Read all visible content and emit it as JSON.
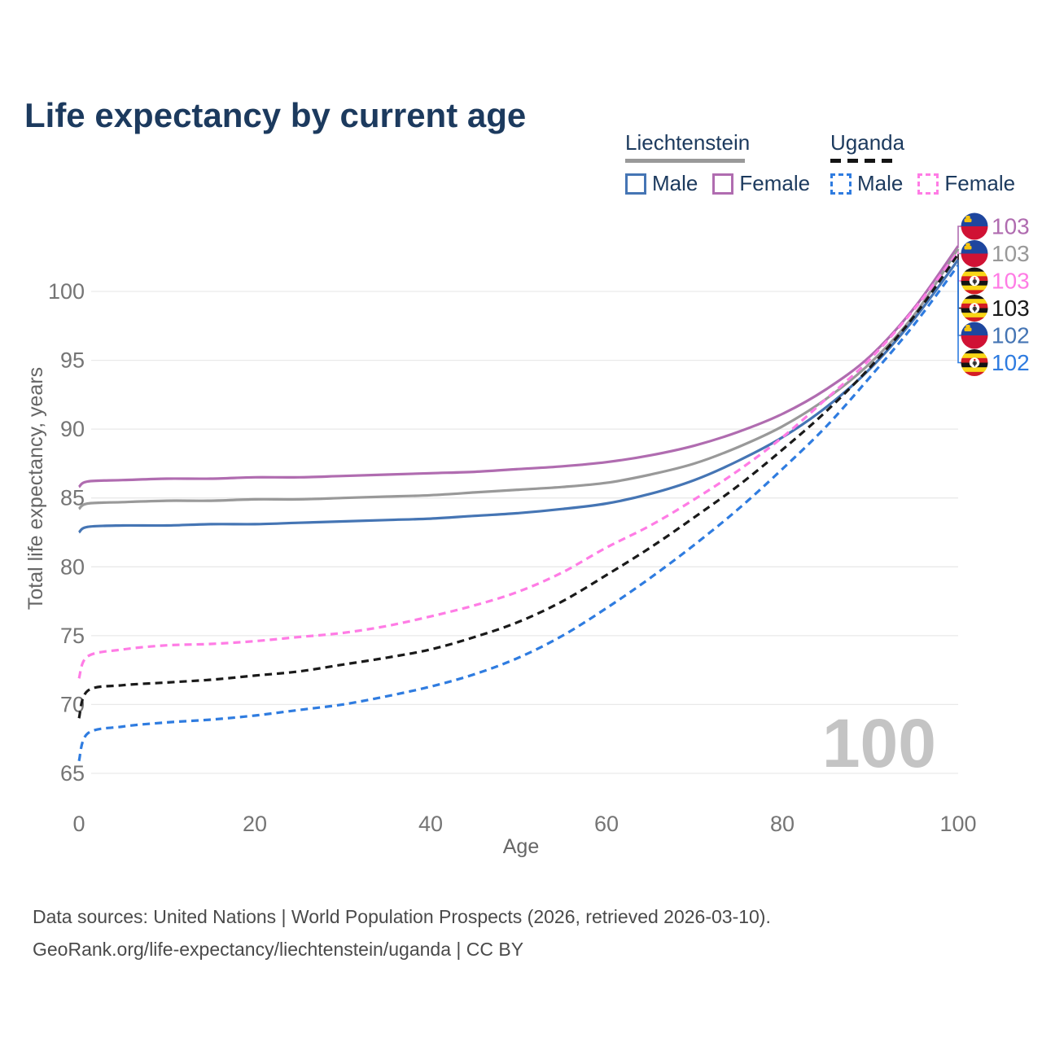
{
  "title": "Life expectancy by current age",
  "legend": {
    "groups": [
      {
        "label": "Liechtenstein",
        "line_style": "solid",
        "underline_color": "#999999",
        "items": [
          {
            "label": "Male",
            "color": "#4575b4",
            "dashed": false
          },
          {
            "label": "Female",
            "color": "#b06cb0",
            "dashed": false
          }
        ]
      },
      {
        "label": "Uganda",
        "line_style": "dashed",
        "underline_color": "#141414",
        "items": [
          {
            "label": "Male",
            "color": "#2f7ce0",
            "dashed": true
          },
          {
            "label": "Female",
            "color": "#ff7ce5",
            "dashed": true
          }
        ]
      }
    ]
  },
  "watermark": {
    "text": "100",
    "color": "#c4c4c4"
  },
  "footer": {
    "line1": "Data sources: United Nations | World Population Prospects (2026, retrieved 2026-03-10).",
    "line2": "GeoRank.org/life-expectancy/liechtenstein/uganda | CC BY"
  },
  "chart_data": {
    "type": "line",
    "title": "Life expectancy by current age",
    "xlabel": "Age",
    "ylabel": "Total life expectancy, years",
    "xlim": [
      0,
      100
    ],
    "ylim": [
      65,
      104
    ],
    "x_ticks": [
      0,
      20,
      40,
      60,
      80,
      100
    ],
    "y_ticks": [
      65,
      70,
      75,
      80,
      85,
      90,
      95,
      100
    ],
    "grid": "horizontal",
    "legend_position": "top-right",
    "tick_color": "#757575",
    "grid_color": "#e9e9e9",
    "x": [
      0,
      1,
      5,
      10,
      15,
      20,
      25,
      30,
      35,
      40,
      45,
      50,
      55,
      60,
      65,
      70,
      75,
      80,
      85,
      90,
      95,
      100
    ],
    "series": [
      {
        "name": "Liechtenstein Female",
        "country": "Liechtenstein",
        "sex": "Female",
        "color": "#b06cb0",
        "dashed": false,
        "end_label": "103",
        "values": [
          85.8,
          86.2,
          86.3,
          86.4,
          86.4,
          86.5,
          86.5,
          86.6,
          86.7,
          86.8,
          86.9,
          87.1,
          87.3,
          87.6,
          88.1,
          88.8,
          89.8,
          91.1,
          92.9,
          95.3,
          98.8,
          103.3
        ]
      },
      {
        "name": "Liechtenstein (both sexes)",
        "country": "Liechtenstein",
        "sex": "All",
        "color": "#999999",
        "dashed": false,
        "end_label": "103",
        "values": [
          84.2,
          84.6,
          84.7,
          84.8,
          84.8,
          84.9,
          84.9,
          85.0,
          85.1,
          85.2,
          85.4,
          85.6,
          85.8,
          86.1,
          86.7,
          87.5,
          88.7,
          90.2,
          92.2,
          94.8,
          98.3,
          103.1
        ]
      },
      {
        "name": "Liechtenstein Male",
        "country": "Liechtenstein",
        "sex": "Male",
        "color": "#4575b4",
        "dashed": false,
        "end_label": "102",
        "values": [
          82.5,
          82.9,
          83.0,
          83.0,
          83.1,
          83.1,
          83.2,
          83.3,
          83.4,
          83.5,
          83.7,
          83.9,
          84.2,
          84.6,
          85.3,
          86.3,
          87.7,
          89.4,
          91.6,
          94.4,
          98.0,
          102.3
        ]
      },
      {
        "name": "Uganda Female",
        "country": "Uganda",
        "sex": "Female",
        "color": "#ff7ce5",
        "dashed": true,
        "end_label": "103",
        "values": [
          71.9,
          73.5,
          74.0,
          74.3,
          74.4,
          74.6,
          74.9,
          75.2,
          75.7,
          76.4,
          77.2,
          78.2,
          79.6,
          81.4,
          83.0,
          84.9,
          87.0,
          89.4,
          92.2,
          95.1,
          98.7,
          102.9
        ]
      },
      {
        "name": "Uganda (both sexes)",
        "country": "Uganda",
        "sex": "All",
        "color": "#1a1a1a",
        "dashed": true,
        "end_label": "103",
        "values": [
          69.0,
          71.0,
          71.4,
          71.6,
          71.8,
          72.1,
          72.4,
          72.9,
          73.4,
          74.0,
          74.9,
          76.0,
          77.5,
          79.4,
          81.4,
          83.6,
          85.9,
          88.5,
          91.3,
          94.5,
          98.2,
          102.7
        ]
      },
      {
        "name": "Uganda Male",
        "country": "Uganda",
        "sex": "Male",
        "color": "#2f7ce0",
        "dashed": true,
        "end_label": "102",
        "values": [
          65.9,
          67.9,
          68.4,
          68.7,
          68.9,
          69.2,
          69.6,
          70.0,
          70.6,
          71.3,
          72.2,
          73.4,
          75.0,
          77.0,
          79.2,
          81.6,
          84.2,
          87.1,
          90.2,
          93.8,
          97.6,
          101.9
        ]
      }
    ]
  }
}
